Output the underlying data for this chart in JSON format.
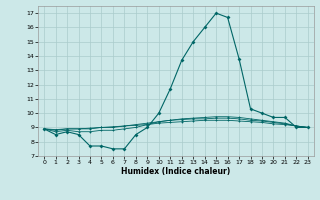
{
  "title": "",
  "xlabel": "Humidex (Indice chaleur)",
  "bg_color": "#cce8e8",
  "grid_color": "#aacccc",
  "line_color": "#006666",
  "xlim": [
    -0.5,
    23.5
  ],
  "ylim": [
    7,
    17.5
  ],
  "yticks": [
    7,
    8,
    9,
    10,
    11,
    12,
    13,
    14,
    15,
    16,
    17
  ],
  "xticks": [
    0,
    1,
    2,
    3,
    4,
    5,
    6,
    7,
    8,
    9,
    10,
    11,
    12,
    13,
    14,
    15,
    16,
    17,
    18,
    19,
    20,
    21,
    22,
    23
  ],
  "series": [
    [
      8.9,
      8.5,
      8.7,
      8.5,
      7.7,
      7.7,
      7.5,
      7.5,
      8.5,
      9.0,
      10.0,
      11.7,
      13.7,
      15.0,
      16.0,
      17.0,
      16.7,
      13.8,
      10.3,
      10.0,
      9.7,
      9.7,
      9.0,
      9.0
    ],
    [
      8.9,
      8.7,
      8.8,
      8.7,
      8.7,
      8.8,
      8.8,
      8.9,
      9.0,
      9.2,
      9.4,
      9.5,
      9.6,
      9.65,
      9.7,
      9.75,
      9.75,
      9.7,
      9.6,
      9.5,
      9.4,
      9.3,
      9.1,
      9.0
    ],
    [
      8.9,
      8.8,
      8.9,
      8.9,
      8.9,
      9.0,
      9.0,
      9.1,
      9.2,
      9.3,
      9.4,
      9.5,
      9.55,
      9.6,
      9.6,
      9.65,
      9.65,
      9.6,
      9.5,
      9.45,
      9.35,
      9.25,
      9.1,
      9.0
    ],
    [
      8.9,
      8.85,
      8.9,
      8.9,
      8.95,
      9.0,
      9.05,
      9.1,
      9.15,
      9.2,
      9.3,
      9.35,
      9.4,
      9.45,
      9.5,
      9.5,
      9.5,
      9.45,
      9.4,
      9.35,
      9.25,
      9.2,
      9.1,
      9.0
    ]
  ]
}
